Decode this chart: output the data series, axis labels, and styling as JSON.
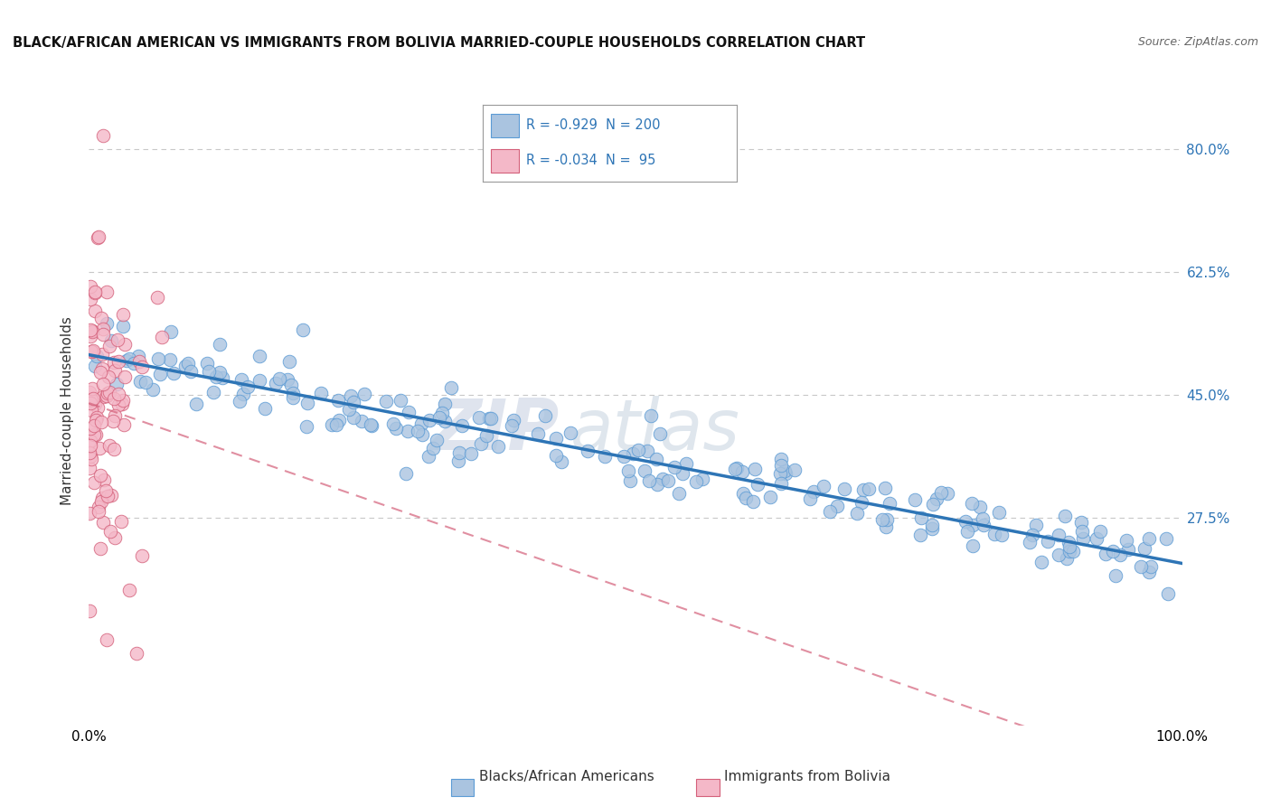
{
  "title": "BLACK/AFRICAN AMERICAN VS IMMIGRANTS FROM BOLIVIA MARRIED-COUPLE HOUSEHOLDS CORRELATION CHART",
  "source": "Source: ZipAtlas.com",
  "ylabel": "Married-couple Households",
  "xlabel": "",
  "blue_R": -0.929,
  "blue_N": 200,
  "pink_R": -0.034,
  "pink_N": 95,
  "blue_color": "#aac4e0",
  "blue_edge": "#5b9bd5",
  "blue_line_color": "#2e75b6",
  "pink_color": "#f4b8c8",
  "pink_edge": "#d4607a",
  "pink_line_color": "#d4607a",
  "background_color": "#ffffff",
  "grid_color": "#c8c8c8",
  "watermark_zip": "ZIP",
  "watermark_atlas": "atlas",
  "legend_label_blue": "Blacks/African Americans",
  "legend_label_pink": "Immigrants from Bolivia",
  "xlim": [
    0.0,
    1.0
  ],
  "ylim": [
    -0.02,
    0.875
  ],
  "yticks": [
    0.275,
    0.45,
    0.625,
    0.8
  ],
  "ytick_labels": [
    "27.5%",
    "45.0%",
    "62.5%",
    "80.0%"
  ],
  "xticks": [
    0.0,
    1.0
  ],
  "xtick_labels": [
    "0.0%",
    "100.0%"
  ],
  "blue_seed": 42,
  "pink_seed": 17
}
